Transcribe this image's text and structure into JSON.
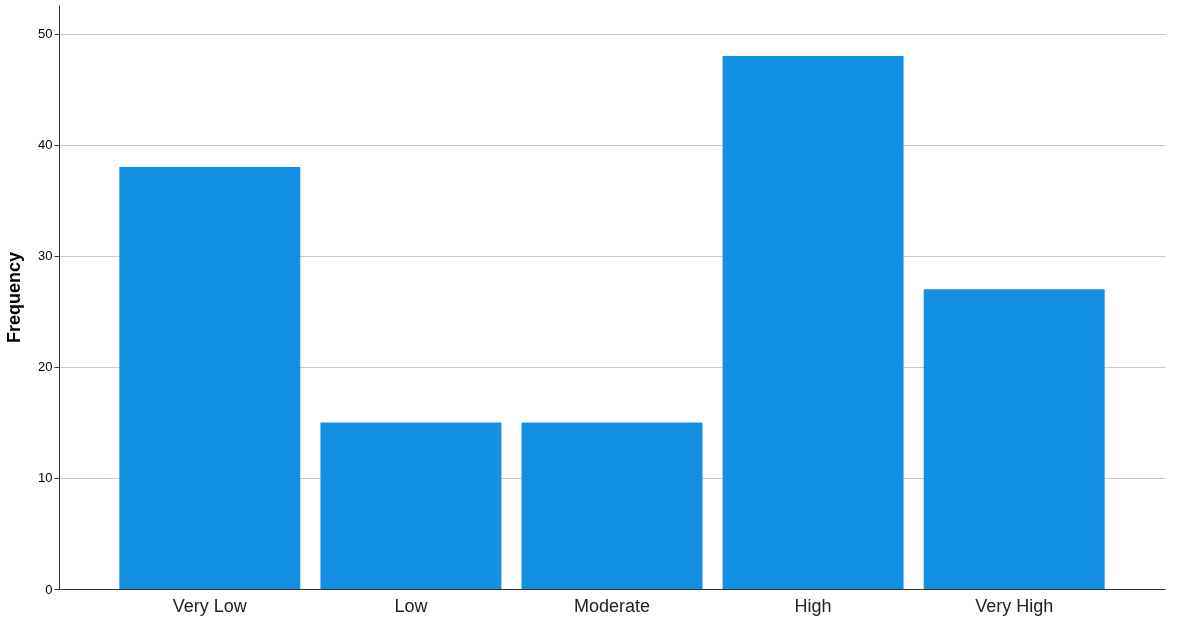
{
  "chart_data": {
    "type": "bar",
    "ylabel": "Frequency",
    "categories": [
      "Very Low",
      "Low",
      "Moderate",
      "High",
      "Very High"
    ],
    "values": [
      38,
      15,
      15,
      48,
      27
    ],
    "color": "#1490e3",
    "ylim": [
      0,
      52.6
    ],
    "yticks": [
      0,
      10,
      20,
      30,
      40,
      50
    ],
    "grid": "y"
  }
}
